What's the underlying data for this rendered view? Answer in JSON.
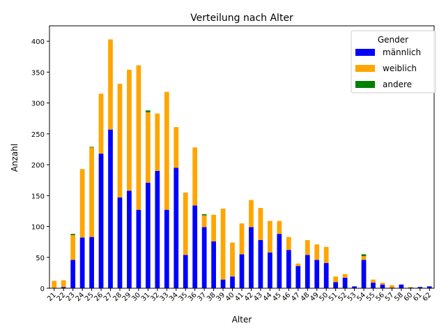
{
  "chart_data": {
    "type": "bar",
    "stacked": true,
    "title": "Verteilung nach Alter",
    "xlabel": "Alter",
    "ylabel": "Anzahl",
    "ylim": [
      0,
      425
    ],
    "yticks": [
      0,
      50,
      100,
      150,
      200,
      250,
      300,
      350,
      400
    ],
    "categories": [
      "21",
      "22",
      "23",
      "24",
      "25",
      "26",
      "27",
      "28",
      "29",
      "30",
      "31",
      "32",
      "33",
      "34",
      "35",
      "36",
      "37",
      "38",
      "39",
      "40",
      "41",
      "42",
      "43",
      "44",
      "45",
      "46",
      "47",
      "48",
      "49",
      "50",
      "51",
      "52",
      "53",
      "54",
      "55",
      "56",
      "57",
      "58",
      "60",
      "61",
      "62"
    ],
    "legend": {
      "title": "Gender",
      "position": "top-right"
    },
    "series": [
      {
        "name": "männlich",
        "color": "#0000ff",
        "values": [
          0,
          2,
          46,
          82,
          83,
          218,
          257,
          147,
          158,
          127,
          171,
          190,
          127,
          195,
          54,
          134,
          99,
          76,
          14,
          19,
          55,
          99,
          78,
          58,
          88,
          62,
          36,
          54,
          46,
          41,
          10,
          17,
          3,
          46,
          9,
          6,
          1,
          6,
          1,
          2,
          3
        ]
      },
      {
        "name": "weiblich",
        "color": "#ffa500",
        "values": [
          12,
          11,
          40,
          111,
          145,
          97,
          146,
          184,
          196,
          234,
          114,
          93,
          191,
          66,
          101,
          94,
          19,
          43,
          115,
          55,
          50,
          44,
          52,
          51,
          21,
          21,
          4,
          24,
          25,
          26,
          9,
          6,
          0,
          6,
          5,
          3,
          4,
          0,
          1,
          0,
          0
        ]
      },
      {
        "name": "andere",
        "color": "#008000",
        "values": [
          0,
          0,
          2,
          0,
          1,
          0,
          0,
          0,
          0,
          0,
          3,
          0,
          0,
          0,
          0,
          0,
          2,
          0,
          0,
          0,
          0,
          0,
          0,
          0,
          0,
          0,
          0,
          0,
          0,
          0,
          0,
          0,
          0,
          3,
          0,
          0,
          0,
          0,
          0,
          0,
          0
        ]
      }
    ]
  }
}
